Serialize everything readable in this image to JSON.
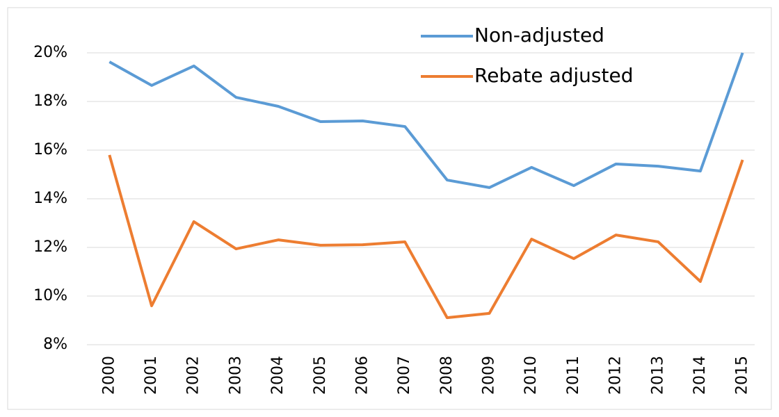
{
  "chart_data": {
    "type": "line",
    "categories": [
      "2000",
      "2001",
      "2002",
      "2003",
      "2004",
      "2005",
      "2006",
      "2007",
      "2008",
      "2009",
      "2010",
      "2011",
      "2012",
      "2013",
      "2014",
      "2015"
    ],
    "series": [
      {
        "name": "Non-adjusted",
        "color": "#5b9bd5",
        "values": [
          19.63,
          18.66,
          19.46,
          18.17,
          17.8,
          17.17,
          17.2,
          16.97,
          14.77,
          14.46,
          15.29,
          14.54,
          15.43,
          15.34,
          15.14,
          20.0
        ]
      },
      {
        "name": "Rebate adjusted",
        "color": "#ed7d31",
        "values": [
          15.8,
          9.6,
          13.06,
          11.94,
          12.31,
          12.09,
          12.11,
          12.23,
          9.11,
          9.29,
          12.34,
          11.54,
          12.51,
          12.23,
          10.6,
          15.6
        ]
      }
    ],
    "ylim": [
      8,
      20
    ],
    "yticks": [
      {
        "value": 8,
        "label": "8%"
      },
      {
        "value": 10,
        "label": "10%"
      },
      {
        "value": 12,
        "label": "12%"
      },
      {
        "value": 14,
        "label": "14%"
      },
      {
        "value": 16,
        "label": "16%"
      },
      {
        "value": 18,
        "label": "18%"
      },
      {
        "value": 20,
        "label": "20%"
      }
    ],
    "grid": true,
    "legend": "top"
  }
}
